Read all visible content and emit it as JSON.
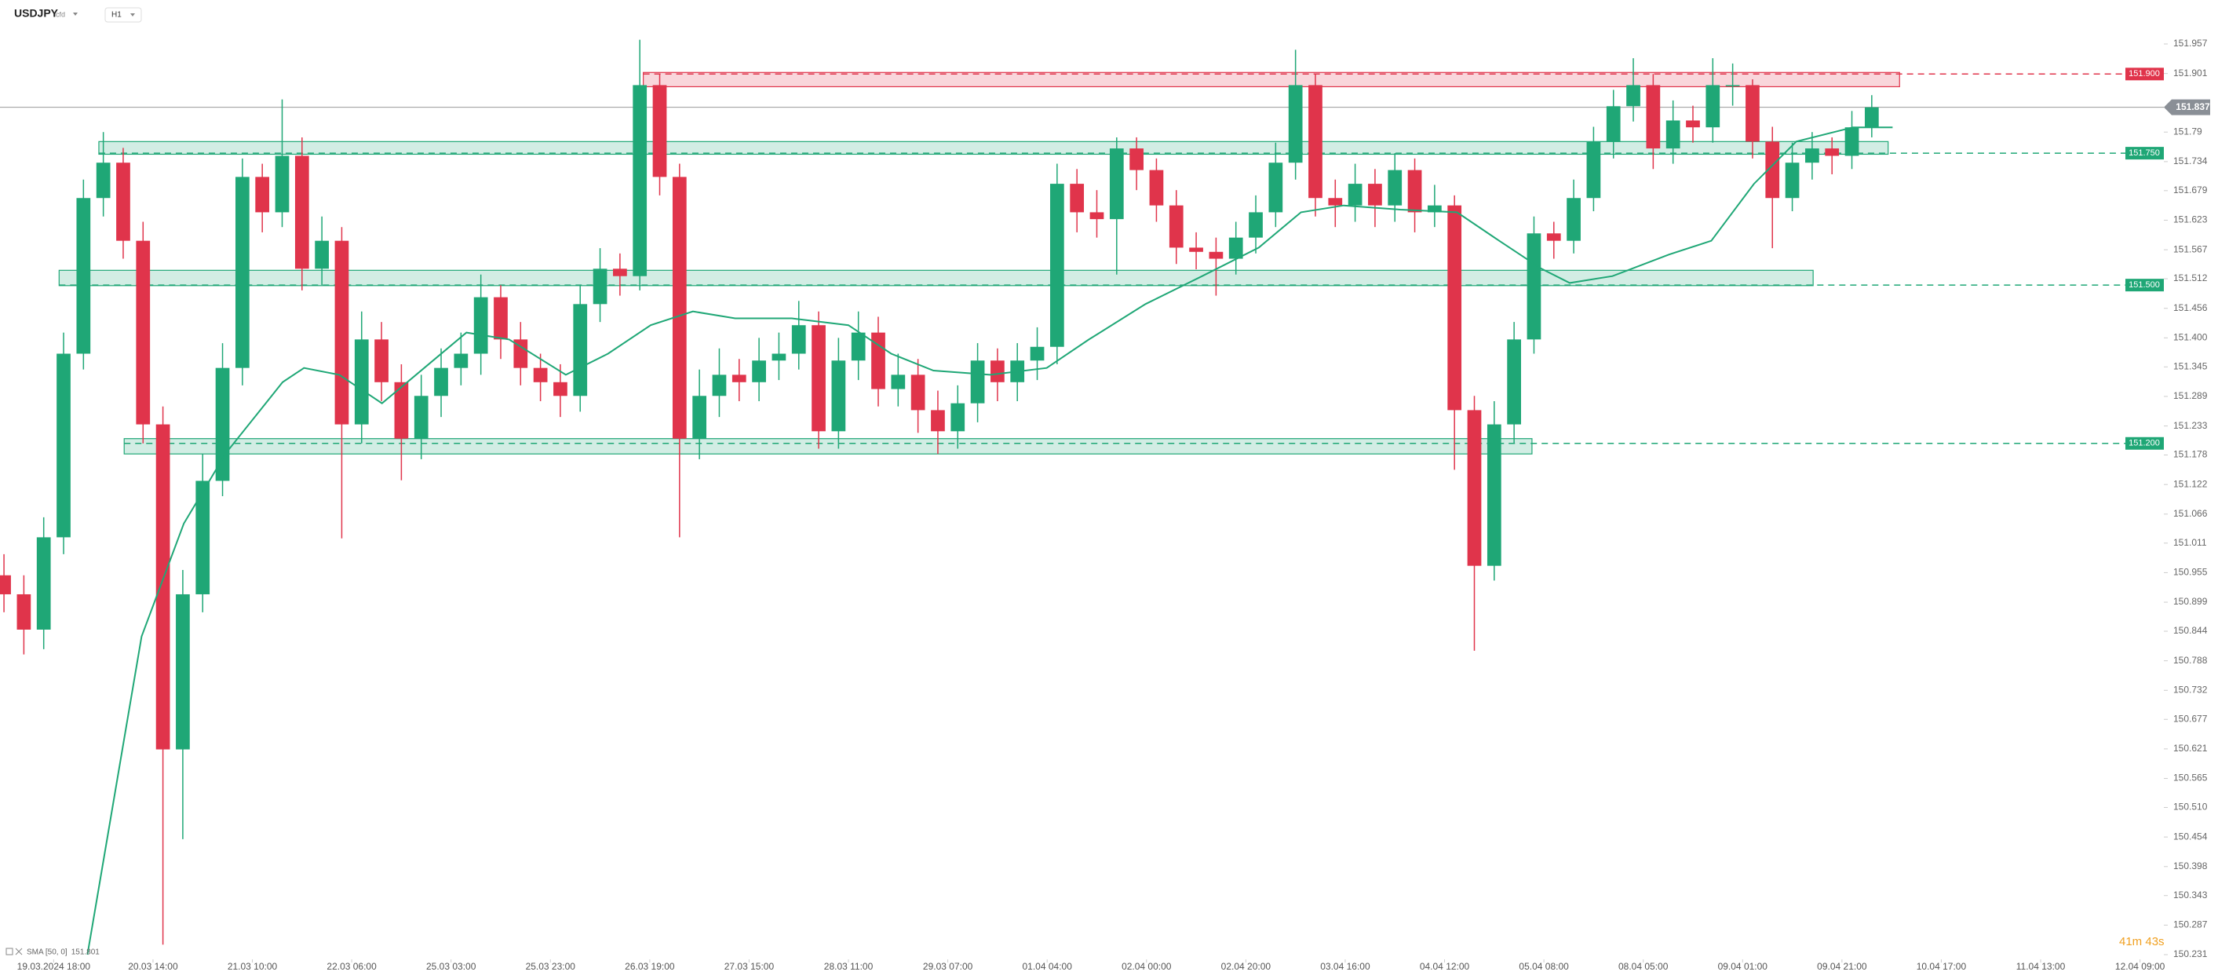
{
  "header": {
    "symbol": "USDJPY",
    "instrument_type": "cfd",
    "timeframe": "H1"
  },
  "chart_data": {
    "type": "candlestick",
    "up_color": "#1fa776",
    "down_color": "#e0344b",
    "xlim": [
      -10.8,
      424.8
    ],
    "xticks": [
      {
        "value": 0,
        "label": "19.03.2024 18:00"
      },
      {
        "value": 20,
        "label": "20.03 14:00"
      },
      {
        "value": 40,
        "label": "21.03 10:00"
      },
      {
        "value": 60,
        "label": "22.03 06:00"
      },
      {
        "value": 80,
        "label": "25.03 03:00"
      },
      {
        "value": 100,
        "label": "25.03 23:00"
      },
      {
        "value": 120,
        "label": "26.03 19:00"
      },
      {
        "value": 140,
        "label": "27.03 15:00"
      },
      {
        "value": 160,
        "label": "28.03 11:00"
      },
      {
        "value": 180,
        "label": "29.03 07:00"
      },
      {
        "value": 200,
        "label": "01.04 04:00"
      },
      {
        "value": 220,
        "label": "02.04 00:00"
      },
      {
        "value": 240,
        "label": "02.04 20:00"
      },
      {
        "value": 260,
        "label": "03.04 16:00"
      },
      {
        "value": 280,
        "label": "04.04 12:00"
      },
      {
        "value": 300,
        "label": "05.04 08:00"
      },
      {
        "value": 320,
        "label": "08.04 05:00"
      },
      {
        "value": 340,
        "label": "09.04 01:00"
      },
      {
        "value": 360,
        "label": "09.04 21:00"
      },
      {
        "value": 380,
        "label": "10.04 17:00"
      },
      {
        "value": 400,
        "label": "11.04 13:00"
      },
      {
        "value": 420,
        "label": "12.04 09:00"
      }
    ],
    "ylim": [
      150.231,
      151.957
    ],
    "yticks": [
      151.957,
      151.901,
      151.79,
      151.734,
      151.679,
      151.623,
      151.567,
      151.512,
      151.456,
      {
        "value": 151.4,
        "label": "151.400"
      },
      151.345,
      151.289,
      151.233,
      151.178,
      151.122,
      151.066,
      151.011,
      150.955,
      150.899,
      150.844,
      150.788,
      150.732,
      150.677,
      150.621,
      150.565,
      {
        "value": 150.51,
        "label": "150.510"
      },
      150.454,
      150.398,
      150.343,
      150.287,
      150.231
    ],
    "candles": {
      "x": [
        -10,
        -6,
        -2,
        2,
        6,
        10,
        14,
        18,
        22,
        26,
        30,
        34,
        38,
        42,
        46,
        50,
        54,
        58,
        62,
        66,
        70,
        74,
        78,
        82,
        86,
        90,
        94,
        98,
        102,
        106,
        110,
        114,
        118,
        122,
        126,
        130,
        134,
        138,
        142,
        146,
        150,
        154,
        158,
        162,
        166,
        170,
        174,
        178,
        182,
        186,
        190,
        194,
        198,
        202,
        206,
        210,
        214,
        218,
        222,
        226,
        230,
        234,
        238,
        242,
        246,
        250,
        254,
        258,
        262,
        266,
        270,
        274,
        278,
        282,
        286,
        290,
        294,
        298,
        302,
        306,
        310,
        314,
        318,
        322,
        326,
        330,
        334,
        338,
        342,
        346,
        350,
        354,
        358,
        362,
        366
      ],
      "open": [
        150.95,
        150.914,
        150.847,
        151.022,
        151.37,
        151.665,
        151.732,
        151.584,
        151.236,
        150.62,
        150.914,
        151.129,
        151.343,
        151.705,
        151.638,
        151.745,
        151.531,
        151.584,
        151.236,
        151.397,
        151.316,
        151.209,
        151.29,
        151.343,
        151.37,
        151.477,
        151.397,
        151.343,
        151.316,
        151.29,
        151.464,
        151.531,
        151.517,
        151.879,
        151.705,
        151.209,
        151.29,
        151.33,
        151.316,
        151.357,
        151.37,
        151.424,
        151.223,
        151.357,
        151.41,
        151.303,
        151.33,
        151.263,
        151.223,
        151.276,
        151.357,
        151.316,
        151.357,
        151.383,
        151.692,
        151.638,
        151.625,
        151.759,
        151.718,
        151.651,
        151.571,
        151.563,
        151.55,
        151.59,
        151.638,
        151.732,
        151.879,
        151.665,
        151.651,
        151.692,
        151.651,
        151.718,
        151.638,
        151.651,
        151.263,
        150.968,
        151.236,
        151.397,
        151.598,
        151.584,
        151.665,
        151.772,
        151.839,
        151.879,
        151.759,
        151.812,
        151.799,
        151.879,
        151.879,
        151.772,
        151.665,
        151.732,
        151.759,
        151.745,
        151.799
      ],
      "high": [
        150.99,
        150.95,
        151.06,
        151.41,
        151.7,
        151.79,
        151.76,
        151.62,
        151.27,
        150.96,
        151.18,
        151.39,
        151.74,
        151.73,
        151.852,
        151.78,
        151.63,
        151.61,
        151.45,
        151.43,
        151.35,
        151.33,
        151.38,
        151.41,
        151.52,
        151.5,
        151.43,
        151.37,
        151.35,
        151.5,
        151.57,
        151.56,
        151.965,
        151.9,
        151.73,
        151.34,
        151.38,
        151.36,
        151.4,
        151.41,
        151.47,
        151.45,
        151.4,
        151.45,
        151.44,
        151.37,
        151.36,
        151.3,
        151.31,
        151.39,
        151.38,
        151.39,
        151.42,
        151.73,
        151.72,
        151.68,
        151.78,
        151.78,
        151.74,
        151.68,
        151.6,
        151.59,
        151.62,
        151.67,
        151.77,
        151.946,
        151.9,
        151.7,
        151.73,
        151.72,
        151.75,
        151.74,
        151.69,
        151.67,
        151.29,
        151.28,
        151.43,
        151.63,
        151.62,
        151.7,
        151.8,
        151.87,
        151.93,
        151.9,
        151.85,
        151.84,
        151.93,
        151.92,
        151.89,
        151.8,
        151.77,
        151.79,
        151.78,
        151.83,
        151.86
      ],
      "low": [
        150.88,
        150.8,
        150.81,
        150.99,
        151.34,
        151.63,
        151.55,
        151.2,
        150.25,
        150.45,
        150.88,
        151.1,
        151.31,
        151.6,
        151.61,
        151.49,
        151.5,
        151.02,
        151.2,
        151.28,
        151.13,
        151.17,
        151.25,
        151.31,
        151.33,
        151.36,
        151.31,
        151.28,
        151.25,
        151.26,
        151.43,
        151.48,
        151.49,
        151.67,
        151.022,
        151.17,
        151.25,
        151.28,
        151.28,
        151.32,
        151.34,
        151.19,
        151.19,
        151.32,
        151.27,
        151.27,
        151.22,
        151.18,
        151.19,
        151.24,
        151.28,
        151.28,
        151.32,
        151.35,
        151.6,
        151.59,
        151.52,
        151.68,
        151.62,
        151.54,
        151.53,
        151.48,
        151.52,
        151.56,
        151.61,
        151.7,
        151.63,
        151.61,
        151.62,
        151.61,
        151.62,
        151.6,
        151.61,
        151.15,
        150.807,
        150.94,
        151.2,
        151.37,
        151.55,
        151.56,
        151.64,
        151.74,
        151.81,
        151.72,
        151.73,
        151.77,
        151.77,
        151.84,
        151.74,
        151.57,
        151.64,
        151.7,
        151.71,
        151.72,
        151.78
      ],
      "close": [
        150.914,
        150.847,
        151.022,
        151.37,
        151.665,
        151.732,
        151.584,
        151.236,
        150.62,
        150.914,
        151.129,
        151.343,
        151.705,
        151.638,
        151.745,
        151.531,
        151.584,
        151.236,
        151.397,
        151.316,
        151.209,
        151.29,
        151.343,
        151.37,
        151.477,
        151.397,
        151.343,
        151.316,
        151.29,
        151.464,
        151.531,
        151.517,
        151.879,
        151.705,
        151.209,
        151.29,
        151.33,
        151.316,
        151.357,
        151.37,
        151.424,
        151.223,
        151.357,
        151.41,
        151.303,
        151.33,
        151.263,
        151.223,
        151.276,
        151.357,
        151.316,
        151.357,
        151.383,
        151.692,
        151.638,
        151.625,
        151.759,
        151.718,
        151.651,
        151.571,
        151.563,
        151.55,
        151.59,
        151.638,
        151.732,
        151.879,
        151.665,
        151.651,
        151.692,
        151.651,
        151.718,
        151.638,
        151.651,
        151.263,
        150.968,
        151.236,
        151.397,
        151.598,
        151.584,
        151.665,
        151.772,
        151.839,
        151.879,
        151.759,
        151.812,
        151.799,
        151.879,
        151.879,
        151.772,
        151.665,
        151.732,
        151.759,
        151.745,
        151.799,
        151.837
      ]
    },
    "sma": {
      "name": "SMA [50, 0]",
      "value": 151.801,
      "color": "#1fa776",
      "x": [
        6.8,
        17.7,
        26.2,
        34.7,
        46.1,
        50.4,
        57.5,
        66.1,
        74.6,
        83.1,
        91.7,
        103.1,
        111.6,
        120.2,
        128.7,
        137.2,
        148.6,
        160,
        168.6,
        177.1,
        188.5,
        199.9,
        208.4,
        219.8,
        231.2,
        242.6,
        251.1,
        259.7,
        271.1,
        282.5,
        291,
        299.5,
        305.2,
        313.8,
        325.2,
        333.7,
        342.3,
        350.8,
        362.2,
        370.2
      ],
      "values": [
        150.231,
        150.834,
        151.048,
        151.182,
        151.316,
        151.343,
        151.33,
        151.276,
        151.343,
        151.41,
        151.397,
        151.33,
        151.37,
        151.424,
        151.45,
        151.437,
        151.437,
        151.424,
        151.37,
        151.338,
        151.33,
        151.343,
        151.397,
        151.464,
        151.517,
        151.571,
        151.638,
        151.651,
        151.643,
        151.638,
        151.584,
        151.531,
        151.504,
        151.517,
        151.558,
        151.584,
        151.692,
        151.772,
        151.799,
        151.799
      ]
    },
    "zones": [
      {
        "color": "#e0344b",
        "top": 151.903,
        "bottom": 151.876,
        "x0": 118.7,
        "x1": 371.6,
        "level": {
          "value": 151.9,
          "label": "151.900"
        }
      },
      {
        "color": "#1fa776",
        "top": 151.772,
        "bottom": 151.748,
        "x0": 9.1,
        "x1": 369.3,
        "level": {
          "value": 151.75,
          "label": "151.750"
        }
      },
      {
        "color": "#1fa776",
        "top": 151.528,
        "bottom": 151.499,
        "x0": 1.1,
        "x1": 354.2,
        "level": {
          "value": 151.5,
          "label": "151.500"
        }
      },
      {
        "color": "#1fa776",
        "top": 151.209,
        "bottom": 151.18,
        "x0": 14.2,
        "x1": 297.6,
        "level": {
          "value": 151.2,
          "label": "151.200"
        }
      }
    ],
    "last_price": 151.837,
    "countdown": "41m 43s"
  }
}
